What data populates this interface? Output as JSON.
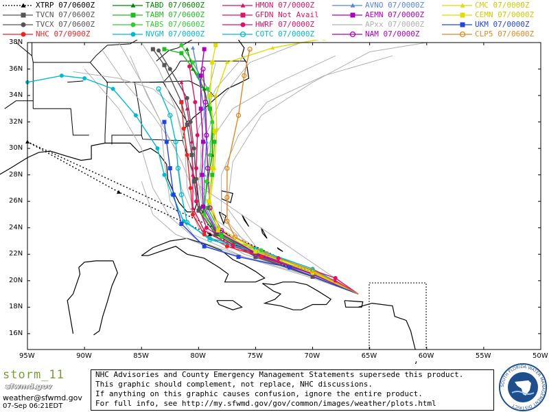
{
  "legend": [
    {
      "label": "XTRP 07/0600Z",
      "color": "#000000",
      "marker": "triangle",
      "dash": true
    },
    {
      "label": "TVCN 07/0600Z",
      "color": "#555555",
      "marker": "square"
    },
    {
      "label": "TVCX 07/0600Z",
      "color": "#555555",
      "marker": "circle"
    },
    {
      "label": "NHC 07/0900Z",
      "color": "#ee2222",
      "marker": "circle"
    },
    {
      "label": "TABD 07/0600Z",
      "color": "#008800",
      "marker": "triangle"
    },
    {
      "label": "TABM 07/0600Z",
      "color": "#22bb22",
      "marker": "square"
    },
    {
      "label": "TABS 07/0600Z",
      "color": "#33cc33",
      "marker": "circle"
    },
    {
      "label": "NVGM 07/0000Z",
      "color": "#00bbcc",
      "marker": "circle"
    },
    {
      "label": "HMON 07/0000Z",
      "color": "#dd1166",
      "marker": "triangle"
    },
    {
      "label": "GFDN Not Avail",
      "color": "#dd1166",
      "marker": "square"
    },
    {
      "label": "HWRF 07/0000Z",
      "color": "#dd1166",
      "marker": "circle"
    },
    {
      "label": "COTC 07/0000Z",
      "color": "#00bbcc",
      "marker": "ring"
    },
    {
      "label": "AVNO 07/0000Z",
      "color": "#5588dd",
      "marker": "triangle"
    },
    {
      "label": "AEMN 07/0000Z",
      "color": "#aa00bb",
      "marker": "square"
    },
    {
      "label": "APxx 07/0000Z",
      "color": "#b0b0b0",
      "marker": "none"
    },
    {
      "label": "NAM 07/0000Z",
      "color": "#aa00bb",
      "marker": "ring"
    },
    {
      "label": "CMC 07/0000Z",
      "color": "#dddd00",
      "marker": "triangle"
    },
    {
      "label": "CEMN 07/0000Z",
      "color": "#dddd00",
      "marker": "square"
    },
    {
      "label": "UKM 07/0000Z",
      "color": "#2244dd",
      "marker": "square"
    },
    {
      "label": "CLP5 07/0600Z",
      "color": "#dd8822",
      "marker": "ring"
    }
  ],
  "axes": {
    "lat_labels": [
      "38N",
      "36N",
      "34N",
      "32N",
      "30N",
      "28N",
      "26N",
      "24N",
      "22N",
      "20N",
      "18N",
      "16N"
    ],
    "lon_labels": [
      "95W",
      "90W",
      "85W",
      "80W",
      "75W",
      "70W",
      "65W",
      "60W",
      "55W",
      "50W"
    ],
    "lon_range": [
      -95,
      -50
    ],
    "lat_range": [
      15,
      38
    ]
  },
  "storm": {
    "start_lon": -66.0,
    "start_lat": 19.0
  },
  "footer": {
    "brand_title": "storm_11",
    "brand_sub": "sfwmd.gov",
    "email": "weather@sfwmd.gov",
    "timestamp": "07-Sep 06:21EDT",
    "disclaimer": [
      "NHC Advisories and County Emergency Management Statements supersede this product.",
      "This graphic should complement, not replace, NHC discussions.",
      "If anything on this graphic causes confusion, ignore the entire product.",
      "For full info, see  http://my.sfwmd.gov/gov/common/images/weather/plots.html"
    ],
    "seal_text": "SOUTH FLORIDA WATER MANAGEMENT DISTRICT"
  }
}
